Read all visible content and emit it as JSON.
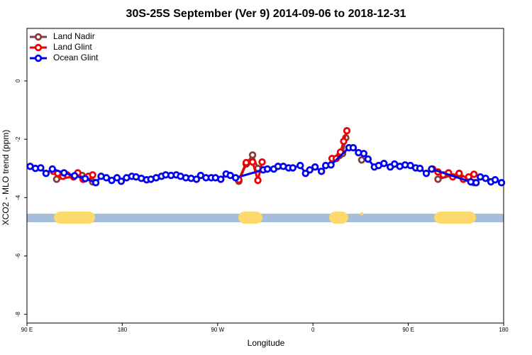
{
  "chart_data": {
    "type": "line",
    "title": "30S-25S September (Ver 9)   2014-09-06 to 2018-12-31",
    "x_label": "Longitude",
    "y_label": "XCO2 - MLO trend (ppm)",
    "xlim": [
      90,
      540
    ],
    "ylim": [
      -8.3,
      1.8
    ],
    "xticks": [
      {
        "value": 90,
        "label": "90 E"
      },
      {
        "value": 180,
        "label": "180"
      },
      {
        "value": 270,
        "label": "90 W"
      },
      {
        "value": 360,
        "label": "0"
      },
      {
        "value": 450,
        "label": "90 E"
      },
      {
        "value": 540,
        "label": "180"
      }
    ],
    "yticks": [
      0,
      -2,
      -4,
      -6,
      -8
    ],
    "legend": "top-left",
    "series": [
      {
        "name": "Land Nadir",
        "color": "#8b3a3a",
        "x": [
          118,
          142,
          152,
          null,
          290,
          297,
          303,
          308,
          null,
          385,
          388,
          391,
          null,
          406,
          null,
          478,
          498,
          512
        ],
        "values": [
          -3.37,
          -3.24,
          -3.46,
          null,
          -3.44,
          -2.85,
          -2.54,
          -3.0,
          null,
          -2.56,
          -2.49,
          -1.95,
          null,
          -2.71,
          null,
          -3.37,
          -3.17,
          -3.49
        ]
      },
      {
        "name": "Land Glint",
        "color": "#ee0000",
        "x": [
          115,
          119,
          124,
          128,
          134,
          138,
          143,
          148,
          152,
          null,
          290,
          297,
          303,
          308,
          312,
          null,
          378,
          382,
          386,
          389,
          392,
          null,
          473,
          478,
          483,
          488,
          492,
          498,
          502,
          507,
          512
        ],
        "values": [
          -3.1,
          -3.17,
          -3.27,
          -3.22,
          -3.29,
          -3.15,
          -3.37,
          -3.27,
          -3.22,
          null,
          -3.39,
          -2.8,
          -2.78,
          -3.41,
          -2.78,
          null,
          -2.66,
          -2.66,
          -2.44,
          -2.07,
          -1.71,
          null,
          -3.02,
          -3.12,
          -3.22,
          -3.15,
          -3.29,
          -3.17,
          -3.37,
          -3.29,
          -3.2
        ]
      },
      {
        "name": "Ocean Glint",
        "color": "#0000ee",
        "x": [
          93,
          98,
          103,
          108,
          114,
          125,
          135,
          145,
          155,
          160,
          165,
          170,
          175,
          179,
          184,
          189,
          193,
          198,
          203,
          207,
          212,
          217,
          221,
          226,
          231,
          235,
          240,
          245,
          250,
          254,
          259,
          264,
          268,
          273,
          278,
          282,
          287,
          313,
          317,
          323,
          327,
          332,
          337,
          341,
          348,
          353,
          357,
          362,
          368,
          372,
          377,
          394,
          398,
          403,
          408,
          412,
          418,
          422,
          427,
          433,
          437,
          442,
          447,
          452,
          457,
          461,
          467,
          472,
          509,
          514,
          518,
          523,
          528,
          532,
          538
        ],
        "values": [
          -2.93,
          -3.0,
          -2.98,
          -3.17,
          -3.02,
          -3.15,
          -3.25,
          -3.35,
          -3.49,
          -3.27,
          -3.32,
          -3.41,
          -3.32,
          -3.44,
          -3.32,
          -3.27,
          -3.29,
          -3.34,
          -3.39,
          -3.37,
          -3.32,
          -3.27,
          -3.22,
          -3.24,
          -3.22,
          -3.27,
          -3.32,
          -3.34,
          -3.37,
          -3.24,
          -3.32,
          -3.32,
          -3.32,
          -3.37,
          -3.19,
          -3.24,
          -3.32,
          -3.05,
          -3.02,
          -3.02,
          -2.93,
          -2.93,
          -2.98,
          -2.98,
          -2.9,
          -3.17,
          -3.05,
          -2.95,
          -3.1,
          -2.9,
          -2.88,
          -2.29,
          -2.29,
          -2.46,
          -2.49,
          -2.68,
          -2.95,
          -2.9,
          -2.83,
          -2.95,
          -2.85,
          -2.93,
          -2.88,
          -2.9,
          -2.98,
          -3.0,
          -3.17,
          -3.02,
          -3.46,
          -3.49,
          -3.29,
          -3.34,
          -3.46,
          -3.39,
          -3.49
        ]
      }
    ]
  }
}
